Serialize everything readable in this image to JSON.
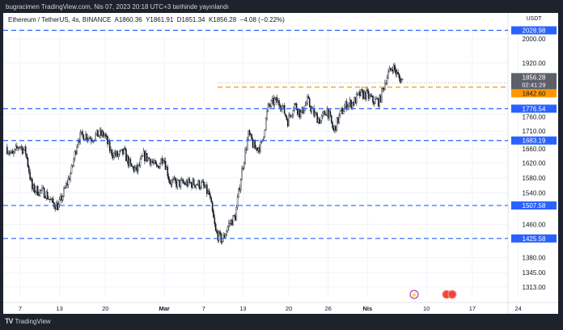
{
  "header": {
    "published": "bugracimen TradingView.com, Nis 07, 2023 20:18 UTC+3 tarihinde yayınlandı"
  },
  "legend": {
    "symbol": "Ethereum / TetherUS, 4s, BINANCE",
    "open": "A1860.36",
    "high": "Y1861.91",
    "low": "D1851.34",
    "close": "K1856.28",
    "change": "−4.08 (−0.22%)"
  },
  "footer": {
    "brand": "TradingView",
    "logo_text": "17"
  },
  "colors": {
    "background": "#1e222d",
    "chart_bg": "#ffffff",
    "candle": "#131722",
    "level_line": "#2962ff",
    "current_line": "#ff9800",
    "last_price_bg": "#5d606b"
  },
  "chart_data": {
    "type": "candlestick",
    "timeframe": "4s",
    "price_unit": "USDT",
    "y_scale": "log",
    "ylim": [
      1290,
      2060
    ],
    "grid": true,
    "y_ticks": [
      "2000.00",
      "1920.00",
      "1760.00",
      "1710.00",
      "1660.00",
      "1620.00",
      "1580.00",
      "1540.00",
      "1460.00",
      "1380.00",
      "1345.00",
      "1313.00"
    ],
    "x_ticks": [
      {
        "label": "7",
        "date": "2023-02-07"
      },
      {
        "label": "13",
        "date": "2023-02-13"
      },
      {
        "label": "20",
        "date": "2023-02-20"
      },
      {
        "label": "Mar",
        "date": "2023-03-01"
      },
      {
        "label": "7",
        "date": "2023-03-07"
      },
      {
        "label": "13",
        "date": "2023-03-13"
      },
      {
        "label": "20",
        "date": "2023-03-20"
      },
      {
        "label": "26",
        "date": "2023-03-26"
      },
      {
        "label": "Nis",
        "date": "2023-04-01"
      },
      {
        "label": "10",
        "date": "2023-04-10"
      },
      {
        "label": "17",
        "date": "2023-04-17"
      },
      {
        "label": "24",
        "date": "2023-04-24"
      }
    ],
    "daily_closes_start": "2023-02-05",
    "daily_closes": [
      1665,
      1640,
      1670,
      1650,
      1550,
      1545,
      1540,
      1515,
      1505,
      1550,
      1600,
      1690,
      1700,
      1690,
      1700,
      1700,
      1650,
      1640,
      1650,
      1610,
      1600,
      1640,
      1630,
      1605,
      1640,
      1570,
      1565,
      1565,
      1565,
      1565,
      1560,
      1535,
      1440,
      1420,
      1460,
      1480,
      1600,
      1700,
      1660,
      1670,
      1780,
      1800,
      1790,
      1740,
      1790,
      1760,
      1800,
      1760,
      1740,
      1775,
      1710,
      1760,
      1790,
      1795,
      1820,
      1820,
      1800,
      1800,
      1870,
      1910,
      1870,
      1856.28
    ],
    "horizontal_levels": [
      {
        "price": 2028.98,
        "label": "2028.98",
        "color": "#2962ff"
      },
      {
        "price": 1776.54,
        "label": "1776.54",
        "color": "#2962ff"
      },
      {
        "price": 1683.19,
        "label": "1683.19",
        "color": "#2962ff"
      },
      {
        "price": 1507.58,
        "label": "1507.58",
        "color": "#2962ff"
      },
      {
        "price": 1425.58,
        "label": "1425.58",
        "color": "#2962ff"
      },
      {
        "price": 1842.6,
        "label": "1842.60",
        "color": "#ff9800"
      }
    ],
    "last_price": {
      "price": 1856.28,
      "label": "1856.28",
      "countdown": "02:41:29"
    }
  }
}
